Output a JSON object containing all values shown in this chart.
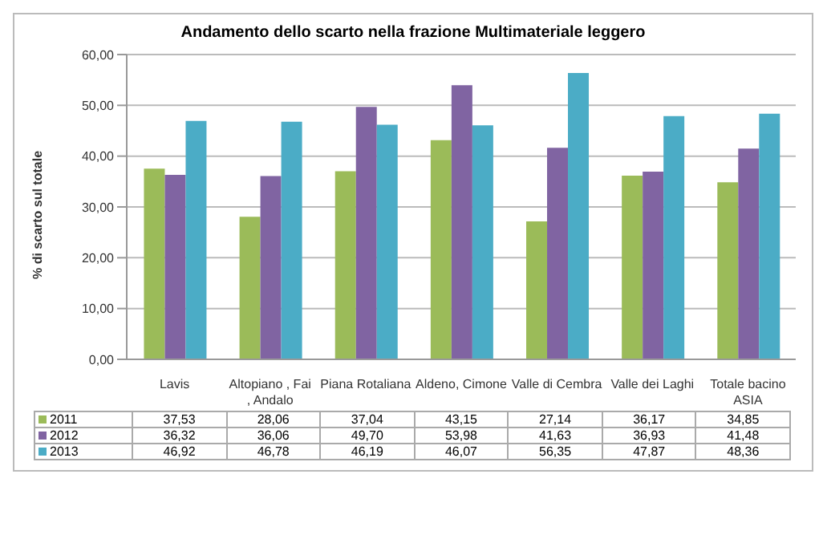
{
  "chart_data": {
    "type": "bar",
    "title": "Andamento dello scarto nella frazione Multimateriale leggero",
    "ylabel": "% di scarto sul totale",
    "categories": [
      "Lavis",
      "Altopiano , Fai , Andalo",
      "Piana Rotaliana",
      "Aldeno, Cimone",
      "Valle di Cembra",
      "Valle dei Laghi",
      "Totale bacino ASIA"
    ],
    "series": [
      {
        "name": "2011",
        "color": "#9bbb59",
        "values": [
          37.53,
          28.06,
          37.04,
          43.15,
          27.14,
          36.17,
          34.85
        ],
        "value_labels": [
          "37,53",
          "28,06",
          "37,04",
          "43,15",
          "27,14",
          "36,17",
          "34,85"
        ]
      },
      {
        "name": "2012",
        "color": "#8064a2",
        "values": [
          36.32,
          36.06,
          49.7,
          53.98,
          41.63,
          36.93,
          41.48
        ],
        "value_labels": [
          "36,32",
          "36,06",
          "49,70",
          "53,98",
          "41,63",
          "36,93",
          "41,48"
        ]
      },
      {
        "name": "2013",
        "color": "#4bacc6",
        "values": [
          46.92,
          46.78,
          46.19,
          46.07,
          56.35,
          47.87,
          48.36
        ],
        "value_labels": [
          "46,92",
          "46,78",
          "46,19",
          "46,07",
          "56,35",
          "47,87",
          "48,36"
        ]
      }
    ],
    "ylim": [
      0,
      60
    ],
    "yticks": [
      {
        "value": 0,
        "label": "0,00"
      },
      {
        "value": 10,
        "label": "10,00"
      },
      {
        "value": 20,
        "label": "20,00"
      },
      {
        "value": 30,
        "label": "30,00"
      },
      {
        "value": 40,
        "label": "40,00"
      },
      {
        "value": 50,
        "label": "50,00"
      },
      {
        "value": 60,
        "label": "60,00"
      }
    ],
    "grid": "y",
    "legend": "bottom"
  }
}
